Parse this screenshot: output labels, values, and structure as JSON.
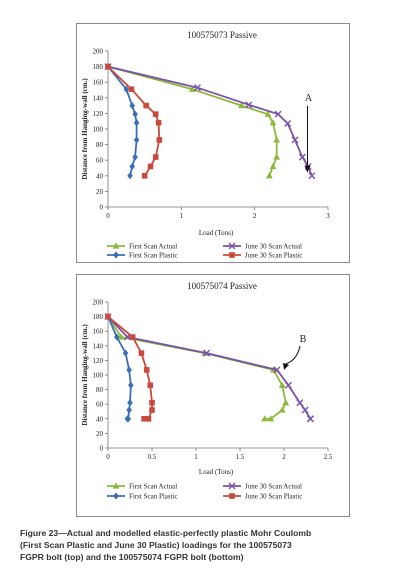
{
  "chart_data": [
    {
      "type": "line",
      "title": "100575073 Passive",
      "xlabel": "Load (Tons)",
      "ylabel": "Distance from Hanging-wall (cm.)",
      "xlim": [
        0,
        3
      ],
      "ylim": [
        0,
        200
      ],
      "xticks": [
        "0",
        "1",
        "2",
        "3"
      ],
      "yticks": [
        "0",
        "20",
        "40",
        "60",
        "80",
        "100",
        "120",
        "140",
        "160",
        "180",
        "200"
      ],
      "annotation": {
        "text": "A",
        "x": 2.72,
        "y": 44
      },
      "legend": "bottom",
      "series": [
        {
          "name": "First Scan Actual",
          "color": "#8cb83c",
          "marker": "triangle",
          "x": [
            0,
            1.15,
            1.82,
            2.18,
            2.25,
            2.3,
            2.3,
            2.25,
            2.2
          ],
          "y": [
            180,
            151,
            130,
            119,
            108,
            86,
            64,
            52,
            40
          ]
        },
        {
          "name": "First Scan Plastic",
          "color": "#3a6fb8",
          "marker": "diamond",
          "x": [
            0,
            0.25,
            0.33,
            0.37,
            0.39,
            0.39,
            0.37,
            0.33,
            0.3
          ],
          "y": [
            180,
            151,
            130,
            119,
            108,
            86,
            64,
            52,
            40
          ]
        },
        {
          "name": "June 30 Scan Actual",
          "color": "#7a52a8",
          "marker": "x",
          "x": [
            0,
            1.22,
            1.92,
            2.32,
            2.45,
            2.55,
            2.65,
            2.73,
            2.78
          ],
          "y": [
            180,
            153,
            131,
            119,
            107,
            86,
            64,
            52,
            40
          ]
        },
        {
          "name": "June 30 Scan Plastic",
          "color": "#c94a3c",
          "marker": "square",
          "x": [
            0,
            0.32,
            0.52,
            0.65,
            0.69,
            0.7,
            0.65,
            0.58,
            0.5
          ],
          "y": [
            180,
            151,
            130,
            119,
            108,
            86,
            64,
            52,
            40
          ]
        }
      ]
    },
    {
      "type": "line",
      "title": "100575074 Passive",
      "xlabel": "Load (Tons)",
      "ylabel": "Distance from Hanging-wall (cm.)",
      "xlim": [
        0,
        2.5
      ],
      "ylim": [
        0,
        200
      ],
      "xticks": [
        "0",
        "0.5",
        "1",
        "1.5",
        "2",
        "2.5"
      ],
      "yticks": [
        "0",
        "20",
        "40",
        "60",
        "80",
        "100",
        "120",
        "140",
        "160",
        "180",
        "200"
      ],
      "annotation": {
        "text": "B",
        "x": 2.0,
        "y": 107
      },
      "legend": "bottom",
      "series": [
        {
          "name": "First Scan Actual",
          "color": "#8cb83c",
          "marker": "triangle",
          "x": [
            0,
            0.15,
            1.1,
            1.88,
            1.98,
            2.02,
            1.98,
            1.85,
            1.78
          ],
          "y": [
            180,
            152,
            130,
            107,
            86,
            62,
            52,
            40,
            40
          ]
        },
        {
          "name": "First Scan Plastic",
          "color": "#3a6fb8",
          "marker": "diamond",
          "x": [
            0,
            0.1,
            0.2,
            0.24,
            0.26,
            0.25,
            0.24,
            0.23,
            0.22
          ],
          "y": [
            180,
            152,
            130,
            107,
            86,
            62,
            52,
            40,
            40
          ]
        },
        {
          "name": "June 30 Scan Actual",
          "color": "#7a52a8",
          "marker": "x",
          "x": [
            0,
            0.22,
            1.12,
            1.92,
            2.05,
            2.18,
            2.24,
            2.3,
            2.3
          ],
          "y": [
            180,
            152,
            130,
            107,
            86,
            62,
            52,
            40,
            40
          ]
        },
        {
          "name": "June 30 Scan Plastic",
          "color": "#c94a3c",
          "marker": "square",
          "x": [
            0,
            0.28,
            0.38,
            0.44,
            0.48,
            0.5,
            0.5,
            0.46,
            0.41
          ],
          "y": [
            180,
            152,
            130,
            107,
            86,
            62,
            52,
            40,
            40
          ]
        }
      ]
    }
  ],
  "caption": {
    "lines": [
      "Figure 23—Actual and modelled elastic-perfectly plastic Mohr Coulomb",
      "(First Scan Plastic and June 30 Plastic) loadings for the 100575073",
      "FGPR bolt (top) and the 100575074 FGPR bolt (bottom)"
    ]
  }
}
